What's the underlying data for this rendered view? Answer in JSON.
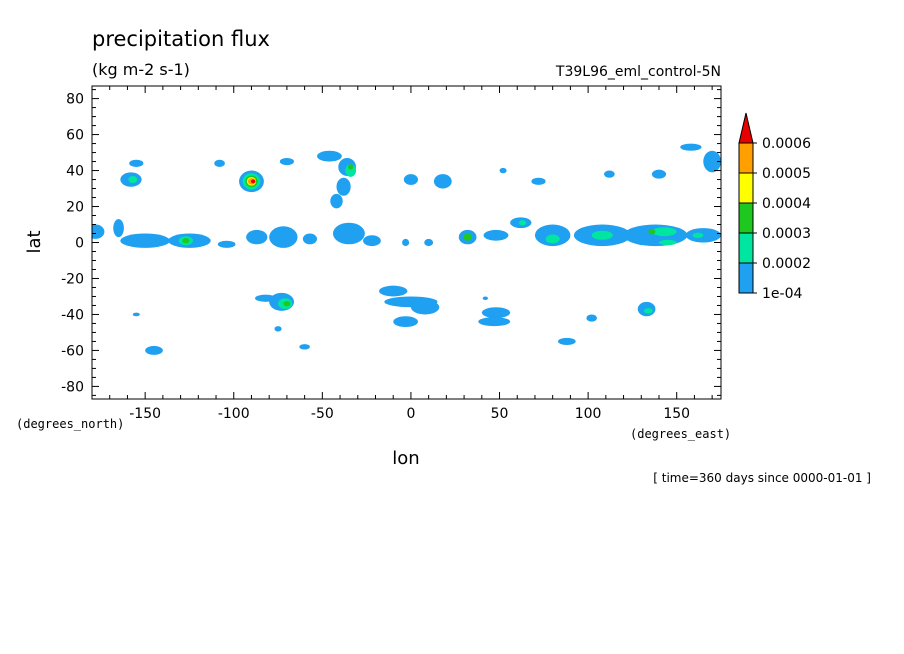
{
  "chart_data": {
    "type": "heatmap",
    "title": "precipitation flux",
    "units": "(kg m-2 s-1)",
    "dataset": "T39L96_eml_control-5N",
    "xlabel": "lon",
    "ylabel": "lat",
    "x_unit_label": "(degrees_east)",
    "y_unit_label": "(degrees_north)",
    "time_info": "[ time=360 days since 0000-01-01 ]",
    "xlim": [
      -180,
      175
    ],
    "ylim": [
      -87,
      87
    ],
    "x_ticks": [
      -150,
      -100,
      -50,
      0,
      50,
      100,
      150
    ],
    "x_tick_labels": [
      "-150",
      "-100",
      "-50",
      "0",
      "50",
      "100",
      "150"
    ],
    "y_ticks": [
      80,
      60,
      40,
      20,
      0,
      -20,
      -40,
      -60,
      -80
    ],
    "y_tick_labels": [
      "80",
      "60",
      "40",
      "20",
      "0",
      "-20",
      "-40",
      "-60",
      "-80"
    ],
    "levels": [
      0.0001,
      0.0002,
      0.0003,
      0.0004,
      0.0005,
      0.0006
    ],
    "level_labels": [
      "1e-04",
      "0.0002",
      "0.0003",
      "0.0004",
      "0.0005",
      "0.0006"
    ],
    "colors": [
      "#1fa0f0",
      "#00e5a0",
      "#1ec81e",
      "#ffff00",
      "#ffa000",
      "#e60000"
    ],
    "grid": false,
    "colorbar_position": "right",
    "features": [
      {
        "lon": -155,
        "lat": 44,
        "rlon": 4,
        "rlat": 2,
        "level": 0
      },
      {
        "lon": -158,
        "lat": 35,
        "rlon": 6,
        "rlat": 4,
        "level": 0
      },
      {
        "lon": -157,
        "lat": 35,
        "rlon": 2.5,
        "rlat": 2,
        "level": 1
      },
      {
        "lon": -108,
        "lat": 44,
        "rlon": 3,
        "rlat": 2,
        "level": 0
      },
      {
        "lon": -90,
        "lat": 34,
        "rlon": 7,
        "rlat": 6,
        "level": 0
      },
      {
        "lon": -90,
        "lat": 34,
        "rlon": 5,
        "rlat": 4.5,
        "level": 1
      },
      {
        "lon": -90,
        "lat": 34,
        "rlon": 3.5,
        "rlat": 3.2,
        "level": 2
      },
      {
        "lon": -90,
        "lat": 34,
        "rlon": 2.6,
        "rlat": 2.4,
        "level": 3
      },
      {
        "lon": -90,
        "lat": 34,
        "rlon": 2,
        "rlat": 1.8,
        "level": 4
      },
      {
        "lon": -89,
        "lat": 34,
        "rlon": 1.3,
        "rlat": 1.1,
        "level": 5
      },
      {
        "lon": -70,
        "lat": 45,
        "rlon": 4,
        "rlat": 2,
        "level": 0
      },
      {
        "lon": -46,
        "lat": 48,
        "rlon": 7,
        "rlat": 3,
        "level": 0
      },
      {
        "lon": -36,
        "lat": 42,
        "rlon": 5,
        "rlat": 5,
        "level": 0
      },
      {
        "lon": -34,
        "lat": 40,
        "rlon": 3,
        "rlat": 3.5,
        "level": 1
      },
      {
        "lon": -34,
        "lat": 42,
        "rlon": 1.5,
        "rlat": 1.5,
        "level": 2
      },
      {
        "lon": -38,
        "lat": 31,
        "rlon": 4,
        "rlat": 5,
        "level": 0
      },
      {
        "lon": -42,
        "lat": 23,
        "rlon": 3.5,
        "rlat": 4,
        "level": 0
      },
      {
        "lon": 0,
        "lat": 35,
        "rlon": 4,
        "rlat": 3,
        "level": 0
      },
      {
        "lon": 18,
        "lat": 34,
        "rlon": 5,
        "rlat": 4,
        "level": 0
      },
      {
        "lon": 52,
        "lat": 40,
        "rlon": 2,
        "rlat": 1.5,
        "level": 0
      },
      {
        "lon": 72,
        "lat": 34,
        "rlon": 4,
        "rlat": 2,
        "level": 0
      },
      {
        "lon": 112,
        "lat": 38,
        "rlon": 3,
        "rlat": 2,
        "level": 0
      },
      {
        "lon": 140,
        "lat": 38,
        "rlon": 4,
        "rlat": 2.5,
        "level": 0
      },
      {
        "lon": 158,
        "lat": 53,
        "rlon": 6,
        "rlat": 2,
        "level": 0
      },
      {
        "lon": 170,
        "lat": 45,
        "rlon": 5,
        "rlat": 6,
        "level": 0
      },
      {
        "lon": -178,
        "lat": 6,
        "rlon": 5,
        "rlat": 4,
        "level": 0
      },
      {
        "lon": -165,
        "lat": 8,
        "rlon": 3,
        "rlat": 5,
        "level": 0
      },
      {
        "lon": -150,
        "lat": 1,
        "rlon": 14,
        "rlat": 4,
        "level": 0
      },
      {
        "lon": -125,
        "lat": 1,
        "rlon": 12,
        "rlat": 4,
        "level": 0
      },
      {
        "lon": -127,
        "lat": 1,
        "rlon": 4,
        "rlat": 2.5,
        "level": 1
      },
      {
        "lon": -127,
        "lat": 1,
        "rlon": 2,
        "rlat": 1.5,
        "level": 2
      },
      {
        "lon": -104,
        "lat": -1,
        "rlon": 5,
        "rlat": 2,
        "level": 0
      },
      {
        "lon": -87,
        "lat": 3,
        "rlon": 6,
        "rlat": 4,
        "level": 0
      },
      {
        "lon": -72,
        "lat": 3,
        "rlon": 8,
        "rlat": 6,
        "level": 0
      },
      {
        "lon": -57,
        "lat": 2,
        "rlon": 4,
        "rlat": 3,
        "level": 0
      },
      {
        "lon": -35,
        "lat": 5,
        "rlon": 9,
        "rlat": 6,
        "level": 0
      },
      {
        "lon": -22,
        "lat": 1,
        "rlon": 5,
        "rlat": 3,
        "level": 0
      },
      {
        "lon": -3,
        "lat": 0,
        "rlon": 2,
        "rlat": 2,
        "level": 0
      },
      {
        "lon": 10,
        "lat": 0,
        "rlon": 2.5,
        "rlat": 2,
        "level": 0
      },
      {
        "lon": 32,
        "lat": 3,
        "rlon": 5,
        "rlat": 4,
        "level": 0
      },
      {
        "lon": 32,
        "lat": 3,
        "rlon": 2.5,
        "rlat": 2,
        "level": 2
      },
      {
        "lon": 48,
        "lat": 4,
        "rlon": 7,
        "rlat": 3,
        "level": 0
      },
      {
        "lon": 62,
        "lat": 11,
        "rlon": 6,
        "rlat": 3,
        "level": 0
      },
      {
        "lon": 63,
        "lat": 11,
        "rlon": 2,
        "rlat": 1.5,
        "level": 1
      },
      {
        "lon": 80,
        "lat": 4,
        "rlon": 10,
        "rlat": 6,
        "level": 0
      },
      {
        "lon": 80,
        "lat": 2,
        "rlon": 4,
        "rlat": 2.5,
        "level": 1
      },
      {
        "lon": 108,
        "lat": 4,
        "rlon": 16,
        "rlat": 6,
        "level": 0
      },
      {
        "lon": 108,
        "lat": 4,
        "rlon": 6,
        "rlat": 2.5,
        "level": 1
      },
      {
        "lon": 138,
        "lat": 4,
        "rlon": 18,
        "rlat": 6,
        "level": 0
      },
      {
        "lon": 143,
        "lat": 6,
        "rlon": 7,
        "rlat": 2.5,
        "level": 1
      },
      {
        "lon": 136,
        "lat": 6,
        "rlon": 2,
        "rlat": 1.5,
        "level": 2
      },
      {
        "lon": 145,
        "lat": 0,
        "rlon": 5,
        "rlat": 1.5,
        "level": 1
      },
      {
        "lon": 165,
        "lat": 4,
        "rlon": 10,
        "rlat": 4,
        "level": 0
      },
      {
        "lon": 162,
        "lat": 4,
        "rlon": 3,
        "rlat": 1.5,
        "level": 1
      },
      {
        "lon": -73,
        "lat": -33,
        "rlon": 7,
        "rlat": 5,
        "level": 0
      },
      {
        "lon": -71,
        "lat": -34,
        "rlon": 4,
        "rlat": 3,
        "level": 1
      },
      {
        "lon": -70,
        "lat": -34,
        "rlon": 2,
        "rlat": 1.5,
        "level": 2
      },
      {
        "lon": -82,
        "lat": -31,
        "rlon": 6,
        "rlat": 2,
        "level": 0
      },
      {
        "lon": -75,
        "lat": -48,
        "rlon": 2,
        "rlat": 1.5,
        "level": 0
      },
      {
        "lon": -60,
        "lat": -58,
        "rlon": 3,
        "rlat": 1.5,
        "level": 0
      },
      {
        "lon": -155,
        "lat": -40,
        "rlon": 2,
        "rlat": 1,
        "level": 0
      },
      {
        "lon": -145,
        "lat": -60,
        "rlon": 5,
        "rlat": 2.5,
        "level": 0
      },
      {
        "lon": -10,
        "lat": -27,
        "rlon": 8,
        "rlat": 3,
        "level": 0
      },
      {
        "lon": 0,
        "lat": -33,
        "rlon": 15,
        "rlat": 3,
        "level": 0
      },
      {
        "lon": 8,
        "lat": -36,
        "rlon": 8,
        "rlat": 4,
        "level": 0
      },
      {
        "lon": -3,
        "lat": -44,
        "rlon": 7,
        "rlat": 3,
        "level": 0
      },
      {
        "lon": 48,
        "lat": -39,
        "rlon": 8,
        "rlat": 3,
        "level": 0
      },
      {
        "lon": 47,
        "lat": -44,
        "rlon": 9,
        "rlat": 2.5,
        "level": 0
      },
      {
        "lon": 42,
        "lat": -31,
        "rlon": 1.5,
        "rlat": 1,
        "level": 0
      },
      {
        "lon": 88,
        "lat": -55,
        "rlon": 5,
        "rlat": 2,
        "level": 0
      },
      {
        "lon": 102,
        "lat": -42,
        "rlon": 3,
        "rlat": 2,
        "level": 0
      },
      {
        "lon": 133,
        "lat": -37,
        "rlon": 5,
        "rlat": 4,
        "level": 0
      },
      {
        "lon": 134,
        "lat": -38,
        "rlon": 2.5,
        "rlat": 1.5,
        "level": 1
      }
    ]
  }
}
